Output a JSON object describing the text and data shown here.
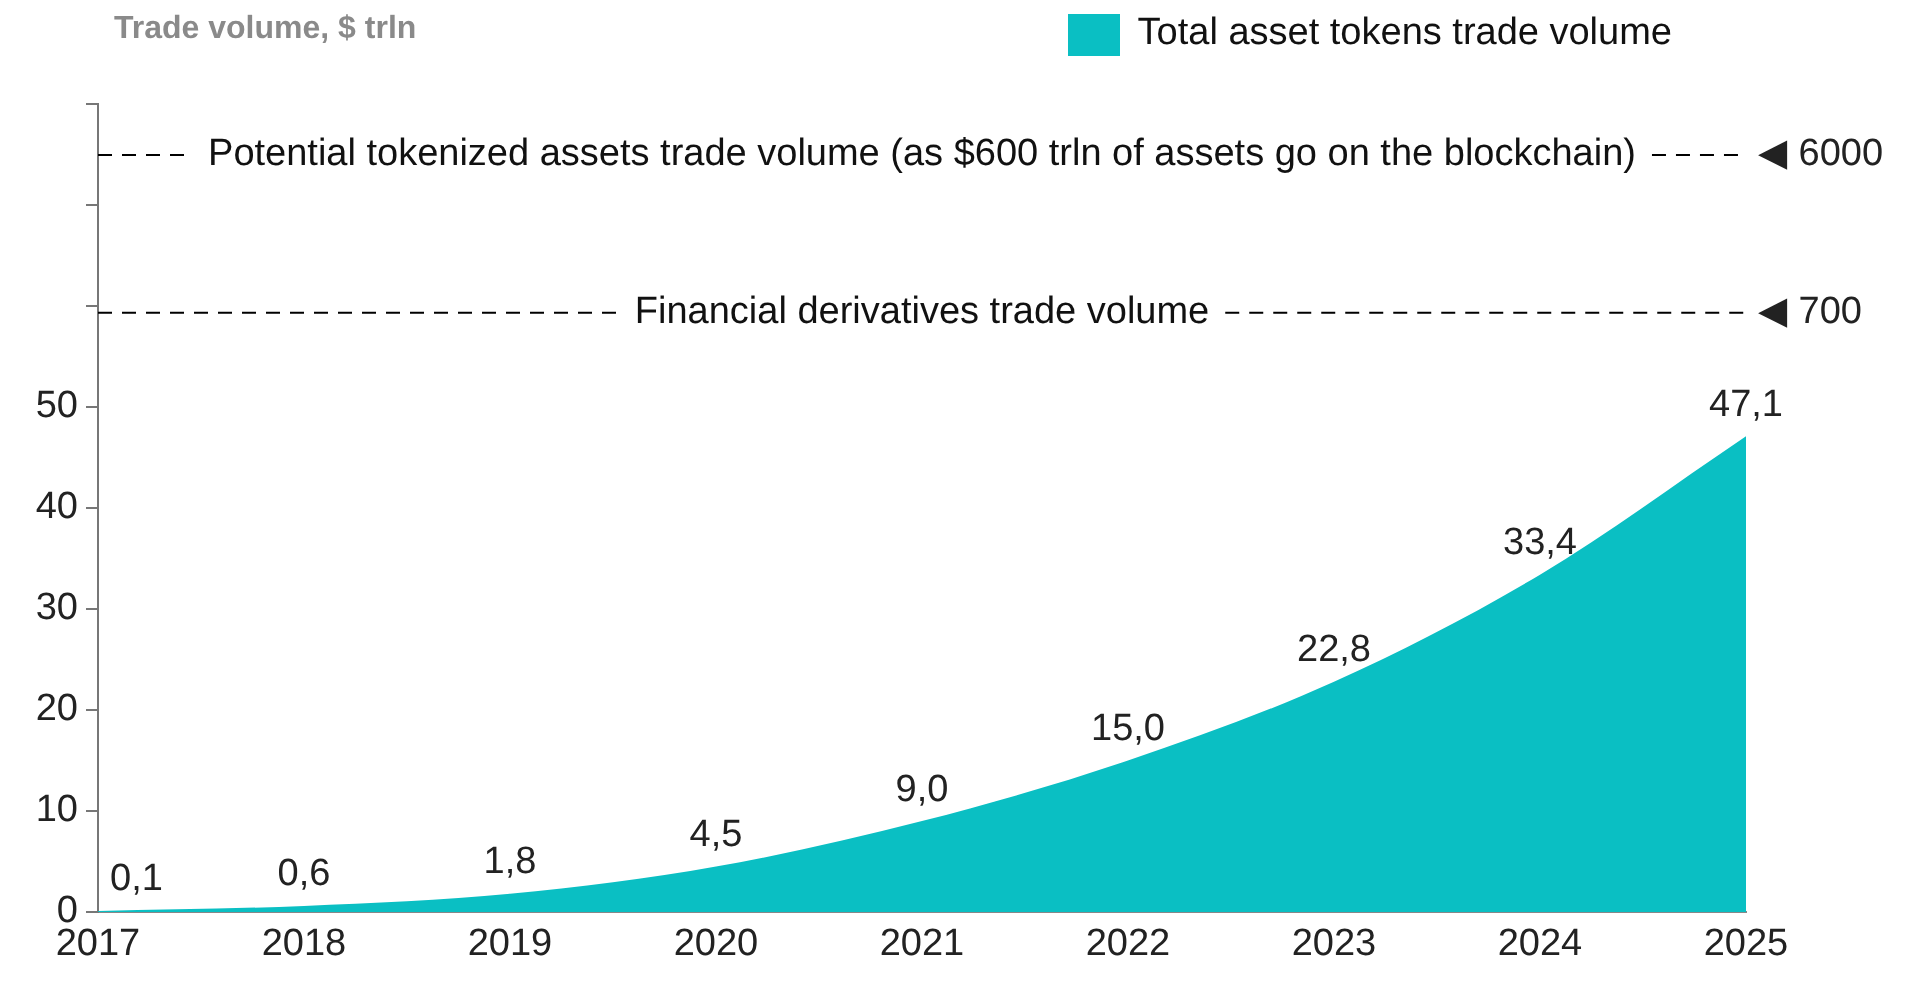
{
  "chart_data": {
    "type": "area",
    "title": "Trade volume, $ trln",
    "categories": [
      "2017",
      "2018",
      "2019",
      "2020",
      "2021",
      "2022",
      "2023",
      "2024",
      "2025"
    ],
    "series": [
      {
        "name": "Total asset tokens trade volume",
        "color": "#0abfc3",
        "values": [
          0.1,
          0.6,
          1.8,
          4.5,
          9.0,
          15.0,
          22.8,
          33.4,
          47.1
        ],
        "value_labels": [
          "0,1",
          "0,6",
          "1,8",
          "4,5",
          "9,0",
          "15,0",
          "22,8",
          "33,4",
          "47,1"
        ]
      }
    ],
    "ylim": [
      0,
      80
    ],
    "yticks": [
      0,
      10,
      20,
      30,
      40,
      50,
      {
        "value": 60,
        "label": null
      },
      {
        "value": 70,
        "label": null
      },
      {
        "value": 80,
        "label": null
      }
    ],
    "y2lim": [
      0.2,
      12000
    ],
    "y2ticks": [
      {
        "value": 700,
        "label": "◀ 700"
      },
      {
        "value": 6000,
        "label": "◀ 6000"
      }
    ],
    "log": "y2",
    "ref_lines": [
      {
        "axis": "y2",
        "value": 6000,
        "label": "Potential tokenized assets trade volume (as $600 trln of assets go on the blockchain)",
        "line_style": "dashed",
        "color": "#000000"
      },
      {
        "axis": "y2",
        "value": 700,
        "label": "Financial derivatives trade volume",
        "line_style": "dashed",
        "color": "#000000"
      }
    ],
    "grid": false,
    "legend": "top right"
  }
}
